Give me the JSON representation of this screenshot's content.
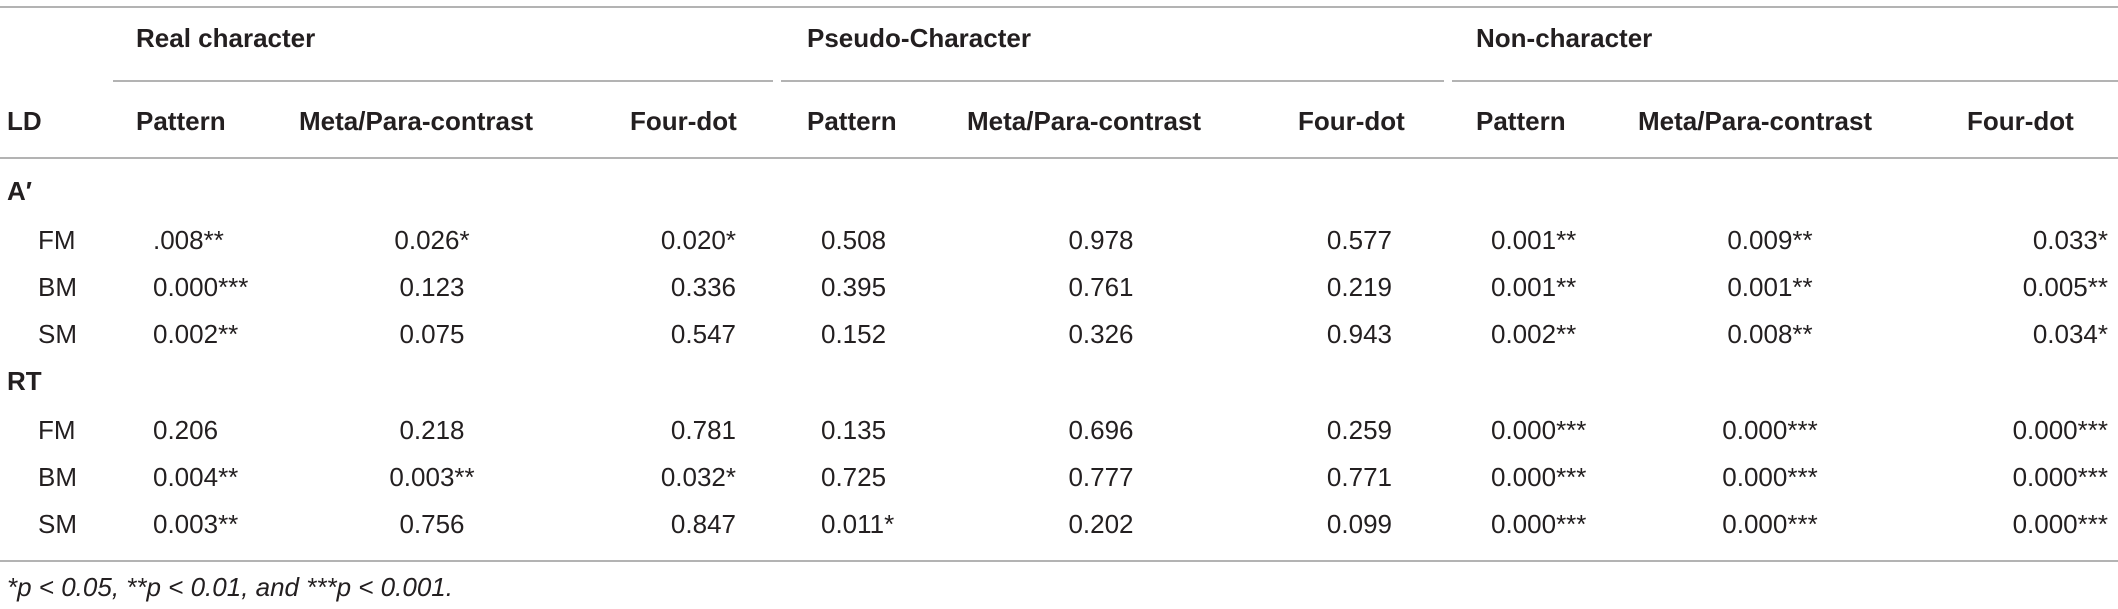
{
  "table": {
    "corner": "LD",
    "groups": [
      "Real character",
      "Pseudo-Character",
      "Non-character"
    ],
    "columns": [
      "Pattern",
      "Meta/Para-contrast",
      "Four-dot",
      "Pattern",
      "Meta/Para-contrast",
      "Four-dot",
      "Pattern",
      "Meta/Para-contrast",
      "Four-dot"
    ],
    "sections": [
      {
        "label": "A′",
        "rows": [
          {
            "label": "FM",
            "cells": [
              ".008**",
              "0.026*",
              "0.020*",
              "0.508",
              "0.978",
              "0.577",
              "0.001**",
              "0.009**",
              "0.033*"
            ]
          },
          {
            "label": "BM",
            "cells": [
              "0.000***",
              "0.123",
              "0.336",
              "0.395",
              "0.761",
              "0.219",
              "0.001**",
              "0.001**",
              "0.005**"
            ]
          },
          {
            "label": "SM",
            "cells": [
              "0.002**",
              "0.075",
              "0.547",
              "0.152",
              "0.326",
              "0.943",
              "0.002**",
              "0.008**",
              "0.034*"
            ]
          }
        ]
      },
      {
        "label": "RT",
        "rows": [
          {
            "label": "FM",
            "cells": [
              "0.206",
              "0.218",
              "0.781",
              "0.135",
              "0.696",
              "0.259",
              "0.000***",
              "0.000***",
              "0.000***"
            ]
          },
          {
            "label": "BM",
            "cells": [
              "0.004**",
              "0.003**",
              "0.032*",
              "0.725",
              "0.777",
              "0.771",
              "0.000***",
              "0.000***",
              "0.000***"
            ]
          },
          {
            "label": "SM",
            "cells": [
              "0.003**",
              "0.756",
              "0.847",
              "0.011*",
              "0.202",
              "0.099",
              "0.000***",
              "0.000***",
              "0.000***"
            ]
          }
        ]
      }
    ]
  },
  "footnote": "*p < 0.05, **p < 0.01, and ***p < 0.001."
}
